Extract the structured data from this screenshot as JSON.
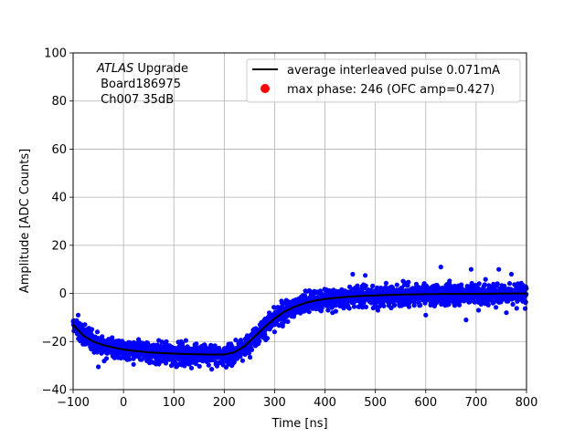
{
  "chart_data": {
    "type": "scatter",
    "title": "",
    "xlabel": "Time [ns]",
    "ylabel": "Amplitude [ADC Counts]",
    "xlim": [
      -100,
      800
    ],
    "ylim": [
      -40,
      100
    ],
    "xticks": [
      -100,
      0,
      100,
      200,
      300,
      400,
      500,
      600,
      700,
      800
    ],
    "yticks": [
      -40,
      -20,
      0,
      20,
      40,
      60,
      80,
      100
    ],
    "grid": true,
    "legend_placement": "top-right",
    "annotation": {
      "line1_italic": "ATLAS",
      "line1_rest": " Upgrade",
      "line2": " Board186975",
      "line3": " Ch007 35dB"
    },
    "series": [
      {
        "name": "average interleaved pulse 0.071mA",
        "kind": "line",
        "color": "#000000",
        "x": [
          -100,
          -80,
          -60,
          -40,
          -20,
          0,
          25,
          50,
          75,
          100,
          125,
          150,
          175,
          200,
          220,
          240,
          260,
          280,
          300,
          320,
          340,
          360,
          380,
          400,
          425,
          450,
          475,
          500,
          550,
          600,
          650,
          700,
          750,
          800
        ],
        "y": [
          -13,
          -17.5,
          -20,
          -21.5,
          -22.5,
          -23.3,
          -24,
          -24.5,
          -24.8,
          -25,
          -25.2,
          -25.3,
          -25.4,
          -25.4,
          -24.5,
          -22,
          -18,
          -14,
          -10.5,
          -7.5,
          -5.5,
          -4,
          -3,
          -2.3,
          -1.8,
          -1.3,
          -1,
          -0.8,
          -0.5,
          -0.3,
          -0.2,
          -0.2,
          -0.1,
          0
        ]
      },
      {
        "name": "max phase: 246 (OFC amp=0.427)",
        "kind": "scatter",
        "color": "#ff0000"
      },
      {
        "name": "",
        "kind": "scatter-band",
        "color": "#0000ff",
        "spread": 3,
        "outliers": [
          [
            -50,
            -30.5
          ],
          [
            20,
            -29.5
          ],
          [
            95,
            -30
          ],
          [
            135,
            -31
          ],
          [
            175,
            -31.5
          ],
          [
            215,
            -30
          ],
          [
            455,
            8
          ],
          [
            480,
            7.5
          ],
          [
            630,
            11
          ],
          [
            690,
            10
          ],
          [
            745,
            10
          ],
          [
            770,
            8
          ],
          [
            415,
            -8
          ],
          [
            505,
            -7
          ],
          [
            600,
            -9
          ],
          [
            680,
            -11
          ],
          [
            705,
            -7
          ],
          [
            760,
            -8
          ],
          [
            -90,
            -9
          ],
          [
            70,
            -19.5
          ],
          [
            300,
            -16
          ]
        ]
      }
    ]
  }
}
